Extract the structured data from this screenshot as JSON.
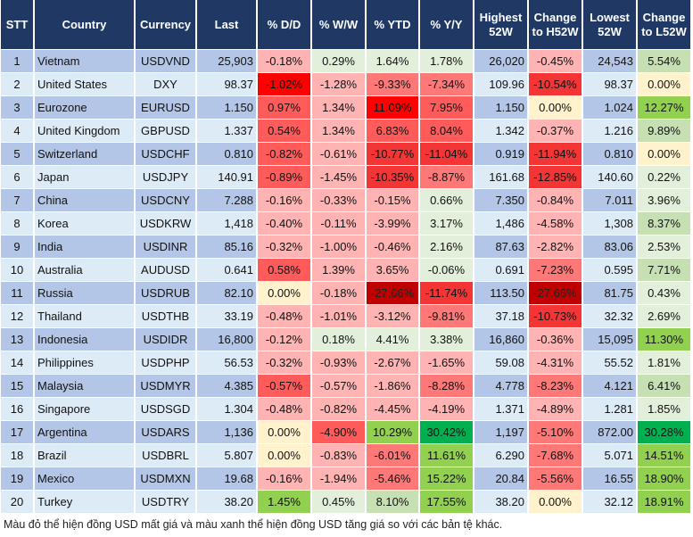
{
  "headers": [
    "STT",
    "Country",
    "Currency",
    "Last",
    "% D/D",
    "% W/W",
    "% YTD",
    "% Y/Y",
    "Highest 52W",
    "Change to H52W",
    "Lowest 52W",
    "Change to L52W"
  ],
  "colors": {
    "L": "#FFB3B3",
    "M": "#FF7878",
    "H": "#FF5B5B",
    "S": "#F33535",
    "R": "#FF0000",
    "D": "#C00000",
    "Y": "#FFF2CC",
    "g1": "#E2EFDA",
    "g2": "#C6E0B4",
    "g3": "#92D050",
    "G": "#00B050",
    "header": "#203864",
    "band_odd": "#B4C6E7",
    "band_even": "#DDEBF7"
  },
  "rows": [
    {
      "stt": "1",
      "country": "Vietnam",
      "currency": "USDVND",
      "last": "25,903",
      "dd": "-0.18%",
      "ww": "0.29%",
      "ytd": "1.64%",
      "yy": "1.78%",
      "high": "26,020",
      "chg_h": "-0.45%",
      "low": "24,543",
      "chg_l": "5.54%",
      "c": [
        "L",
        "g1",
        "g1",
        "g1",
        "L",
        "g2"
      ]
    },
    {
      "stt": "2",
      "country": "United States",
      "currency": "DXY",
      "last": "98.37",
      "dd": "-1.02%",
      "ww": "-1.28%",
      "ytd": "-9.33%",
      "yy": "-7.34%",
      "high": "109.96",
      "chg_h": "-10.54%",
      "low": "98.37",
      "chg_l": "0.00%",
      "c": [
        "R",
        "L",
        "M",
        "M",
        "S",
        "Y"
      ]
    },
    {
      "stt": "3",
      "country": "Eurozone",
      "currency": "EURUSD",
      "last": "1.150",
      "dd": "0.97%",
      "ww": "1.34%",
      "ytd": "11.09%",
      "yy": "7.95%",
      "high": "1.150",
      "chg_h": "0.00%",
      "low": "1.024",
      "chg_l": "12.27%",
      "c": [
        "H",
        "L",
        "R",
        "H",
        "Y",
        "g3"
      ]
    },
    {
      "stt": "4",
      "country": "United Kingdom",
      "currency": "GBPUSD",
      "last": "1.337",
      "dd": "0.54%",
      "ww": "1.34%",
      "ytd": "6.83%",
      "yy": "8.04%",
      "high": "1.342",
      "chg_h": "-0.37%",
      "low": "1.216",
      "chg_l": "9.89%",
      "c": [
        "H",
        "L",
        "H",
        "H",
        "L",
        "g2"
      ]
    },
    {
      "stt": "5",
      "country": "Switzerland",
      "currency": "USDCHF",
      "last": "0.810",
      "dd": "-0.82%",
      "ww": "-0.61%",
      "ytd": "-10.77%",
      "yy": "-11.04%",
      "high": "0.919",
      "chg_h": "-11.94%",
      "low": "0.810",
      "chg_l": "0.00%",
      "c": [
        "H",
        "L",
        "S",
        "S",
        "S",
        "Y"
      ]
    },
    {
      "stt": "6",
      "country": "Japan",
      "currency": "USDJPY",
      "last": "140.91",
      "dd": "-0.89%",
      "ww": "-1.45%",
      "ytd": "-10.35%",
      "yy": "-8.87%",
      "high": "161.68",
      "chg_h": "-12.85%",
      "low": "140.60",
      "chg_l": "0.22%",
      "c": [
        "H",
        "L",
        "S",
        "M",
        "S",
        "g1"
      ]
    },
    {
      "stt": "7",
      "country": "China",
      "currency": "USDCNY",
      "last": "7.288",
      "dd": "-0.16%",
      "ww": "-0.33%",
      "ytd": "-0.15%",
      "yy": "0.66%",
      "high": "7.350",
      "chg_h": "-0.84%",
      "low": "7.011",
      "chg_l": "3.96%",
      "c": [
        "L",
        "L",
        "L",
        "g1",
        "L",
        "g1"
      ]
    },
    {
      "stt": "8",
      "country": "Korea",
      "currency": "USDKRW",
      "last": "1,418",
      "dd": "-0.40%",
      "ww": "-0.11%",
      "ytd": "-3.99%",
      "yy": "3.17%",
      "high": "1,486",
      "chg_h": "-4.58%",
      "low": "1,308",
      "chg_l": "8.37%",
      "c": [
        "L",
        "L",
        "L",
        "g1",
        "L",
        "g2"
      ]
    },
    {
      "stt": "9",
      "country": "India",
      "currency": "USDINR",
      "last": "85.16",
      "dd": "-0.32%",
      "ww": "-1.00%",
      "ytd": "-0.46%",
      "yy": "2.16%",
      "high": "87.63",
      "chg_h": "-2.82%",
      "low": "83.06",
      "chg_l": "2.53%",
      "c": [
        "L",
        "L",
        "L",
        "g1",
        "L",
        "g1"
      ]
    },
    {
      "stt": "10",
      "country": "Australia",
      "currency": "AUDUSD",
      "last": "0.641",
      "dd": "0.58%",
      "ww": "1.39%",
      "ytd": "3.65%",
      "yy": "-0.06%",
      "high": "0.691",
      "chg_h": "-7.23%",
      "low": "0.595",
      "chg_l": "7.71%",
      "c": [
        "H",
        "L",
        "L",
        "g1",
        "M",
        "g2"
      ]
    },
    {
      "stt": "11",
      "country": "Russia",
      "currency": "USDRUB",
      "last": "82.10",
      "dd": "0.00%",
      "ww": "-0.18%",
      "ytd": "-27.66%",
      "yy": "-11.74%",
      "high": "113.50",
      "chg_h": "-27.66%",
      "low": "81.75",
      "chg_l": "0.43%",
      "c": [
        "Y",
        "L",
        "D",
        "S",
        "D",
        "g1"
      ]
    },
    {
      "stt": "12",
      "country": "Thailand",
      "currency": "USDTHB",
      "last": "33.19",
      "dd": "-0.48%",
      "ww": "-1.01%",
      "ytd": "-3.12%",
      "yy": "-9.81%",
      "high": "37.18",
      "chg_h": "-10.73%",
      "low": "32.32",
      "chg_l": "2.69%",
      "c": [
        "L",
        "L",
        "L",
        "M",
        "S",
        "g1"
      ]
    },
    {
      "stt": "13",
      "country": "Indonesia",
      "currency": "USDIDR",
      "last": "16,800",
      "dd": "-0.12%",
      "ww": "0.18%",
      "ytd": "4.41%",
      "yy": "3.38%",
      "high": "16,860",
      "chg_h": "-0.36%",
      "low": "15,095",
      "chg_l": "11.30%",
      "c": [
        "L",
        "g1",
        "g1",
        "g1",
        "L",
        "g3"
      ]
    },
    {
      "stt": "14",
      "country": "Philippines",
      "currency": "USDPHP",
      "last": "56.53",
      "dd": "-0.32%",
      "ww": "-0.93%",
      "ytd": "-2.67%",
      "yy": "-1.65%",
      "high": "59.08",
      "chg_h": "-4.31%",
      "low": "55.52",
      "chg_l": "1.81%",
      "c": [
        "L",
        "L",
        "L",
        "L",
        "L",
        "g1"
      ]
    },
    {
      "stt": "15",
      "country": "Malaysia",
      "currency": "USDMYR",
      "last": "4.385",
      "dd": "-0.57%",
      "ww": "-0.57%",
      "ytd": "-1.86%",
      "yy": "-8.28%",
      "high": "4.778",
      "chg_h": "-8.23%",
      "low": "4.121",
      "chg_l": "6.41%",
      "c": [
        "H",
        "L",
        "L",
        "M",
        "M",
        "g2"
      ]
    },
    {
      "stt": "16",
      "country": "Singapore",
      "currency": "USDSGD",
      "last": "1.304",
      "dd": "-0.48%",
      "ww": "-0.82%",
      "ytd": "-4.45%",
      "yy": "-4.19%",
      "high": "1.371",
      "chg_h": "-4.89%",
      "low": "1.281",
      "chg_l": "1.85%",
      "c": [
        "L",
        "L",
        "L",
        "L",
        "L",
        "g1"
      ]
    },
    {
      "stt": "17",
      "country": "Argentina",
      "currency": "USDARS",
      "last": "1,136",
      "dd": "0.00%",
      "ww": "-4.90%",
      "ytd": "10.29%",
      "yy": "30.42%",
      "high": "1,197",
      "chg_h": "-5.10%",
      "low": "872.00",
      "chg_l": "30.28%",
      "c": [
        "Y",
        "H",
        "g3",
        "G",
        "M",
        "G"
      ]
    },
    {
      "stt": "18",
      "country": "Brazil",
      "currency": "USDBRL",
      "last": "5.807",
      "dd": "0.00%",
      "ww": "-0.83%",
      "ytd": "-6.01%",
      "yy": "11.61%",
      "high": "6.290",
      "chg_h": "-7.68%",
      "low": "5.071",
      "chg_l": "14.51%",
      "c": [
        "Y",
        "L",
        "M",
        "g3",
        "M",
        "g3"
      ]
    },
    {
      "stt": "19",
      "country": "Mexico",
      "currency": "USDMXN",
      "last": "19.68",
      "dd": "-0.16%",
      "ww": "-1.94%",
      "ytd": "-5.46%",
      "yy": "15.22%",
      "high": "20.84",
      "chg_h": "-5.56%",
      "low": "16.55",
      "chg_l": "18.90%",
      "c": [
        "L",
        "L",
        "M",
        "g3",
        "M",
        "g3"
      ]
    },
    {
      "stt": "20",
      "country": "Turkey",
      "currency": "USDTRY",
      "last": "38.20",
      "dd": "1.45%",
      "ww": "0.45%",
      "ytd": "8.10%",
      "yy": "17.55%",
      "high": "38.20",
      "chg_h": "0.00%",
      "low": "32.12",
      "chg_l": "18.91%",
      "c": [
        "g3",
        "g1",
        "g2",
        "g3",
        "Y",
        "g3"
      ]
    }
  ],
  "footnote": "Màu đỏ thể hiện đồng USD mất giá và màu xanh thể hiện đồng USD tăng giá so với các bản tệ khác."
}
